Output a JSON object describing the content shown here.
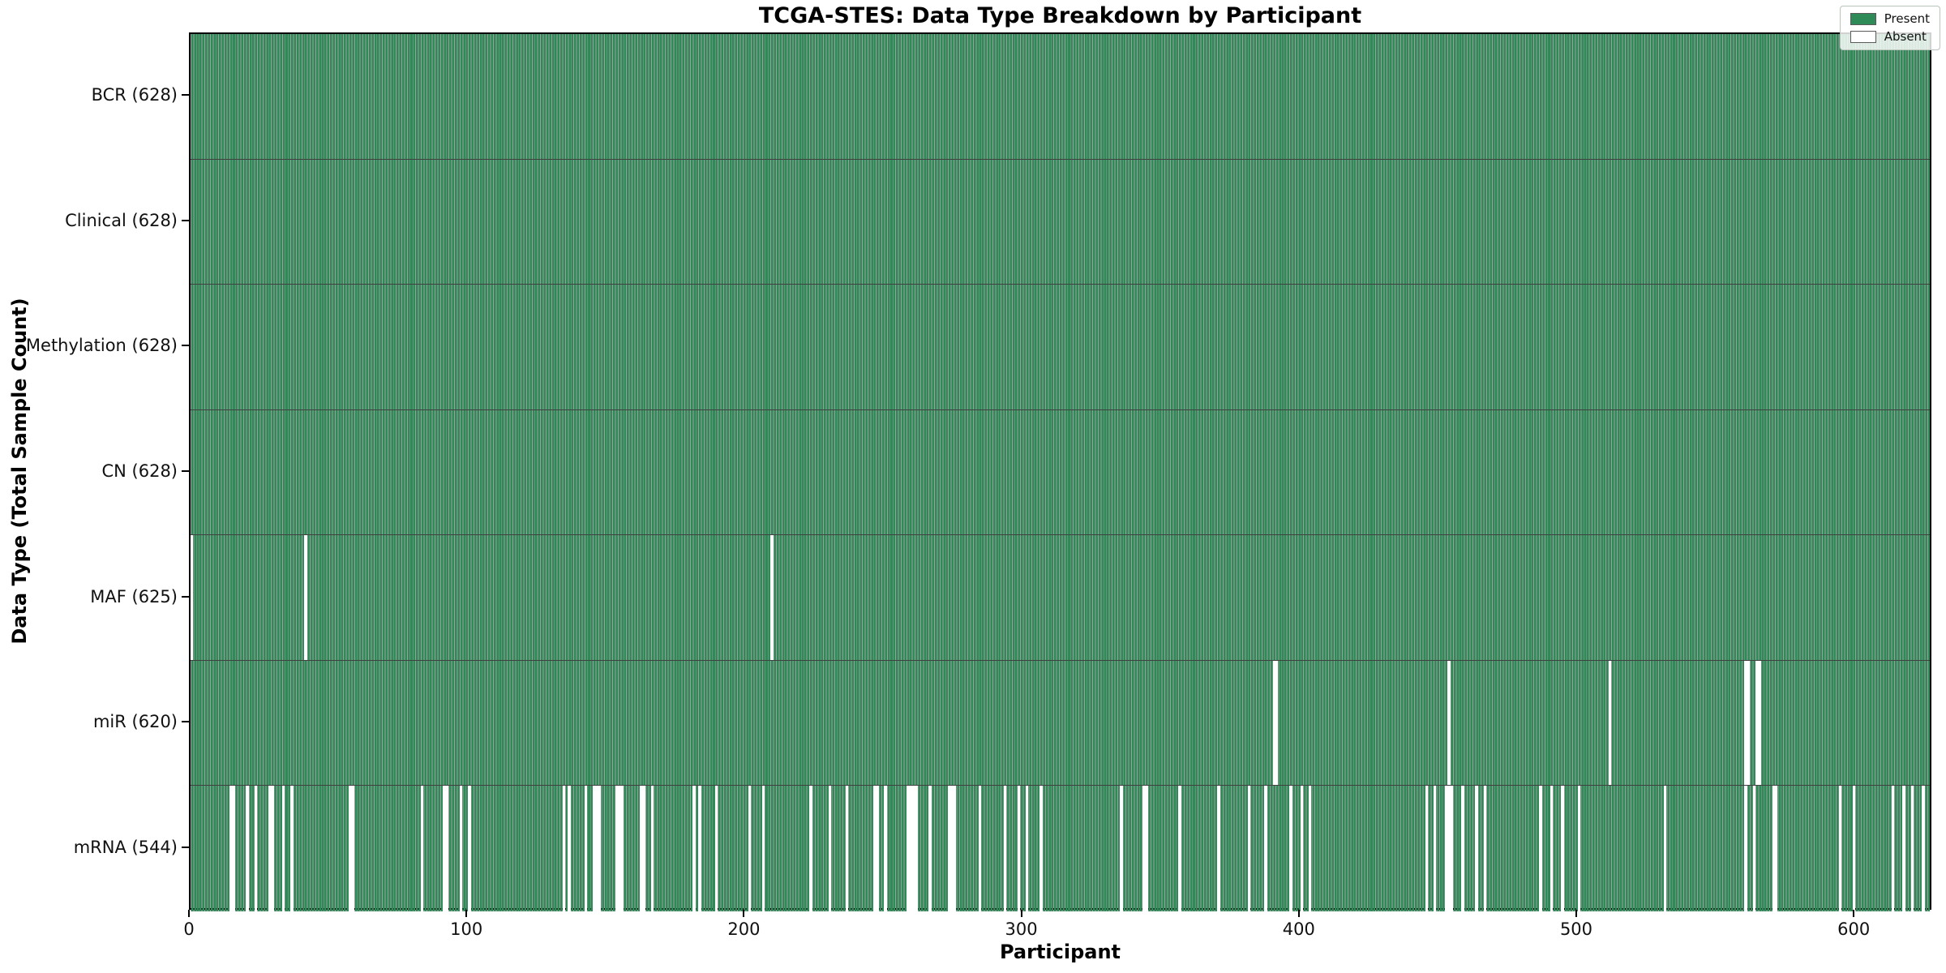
{
  "figure": {
    "title": "TCGA-STES: Data Type Breakdown by Participant",
    "x_label": "Participant",
    "y_label": "Data Type (Total Sample Count)"
  },
  "legend": {
    "items": [
      {
        "label": "Present",
        "color": "#2e8b57"
      },
      {
        "label": "Absent",
        "color": "#ffffff"
      }
    ]
  },
  "chart_data": {
    "type": "heatmap",
    "title": "TCGA-STES: Data Type Breakdown by Participant",
    "xlabel": "Participant",
    "ylabel": "Data Type (Total Sample Count)",
    "x_ticks": [
      0,
      100,
      200,
      300,
      400,
      500,
      600
    ],
    "xlim": [
      0,
      628
    ],
    "n_participants": 628,
    "legend_position": "upper right",
    "colors": {
      "present": "#2e8b57",
      "bar_edge": "rgba(0,0,0,0.38)",
      "absent": "#ffffff",
      "row_separator": "rgba(0,0,0,0.75)"
    },
    "rows": [
      {
        "label": "BCR",
        "total": 628,
        "display": "BCR (628)",
        "absent": []
      },
      {
        "label": "Clinical",
        "total": 628,
        "display": "Clinical (628)",
        "absent": []
      },
      {
        "label": "Methylation",
        "total": 628,
        "display": "Methylation (628)",
        "absent": []
      },
      {
        "label": "CN",
        "total": 628,
        "display": "CN (628)",
        "absent": []
      },
      {
        "label": "MAF",
        "total": 625,
        "display": "MAF (625)",
        "absent": [
          0,
          41,
          209
        ]
      },
      {
        "label": "miR",
        "total": 620,
        "display": "miR (620)",
        "absent": [
          390,
          391,
          453,
          511,
          560,
          561,
          564,
          565
        ]
      },
      {
        "label": "mRNA",
        "total": 544,
        "display": "mRNA (544)",
        "absent": [
          14,
          15,
          20,
          23,
          28,
          29,
          33,
          36,
          57,
          58,
          83,
          91,
          92,
          97,
          100,
          134,
          136,
          142,
          145,
          146,
          147,
          153,
          154,
          155,
          162,
          163,
          166,
          181,
          183,
          189,
          201,
          206,
          223,
          230,
          236,
          246,
          247,
          250,
          258,
          259,
          260,
          261,
          266,
          273,
          274,
          275,
          284,
          293,
          298,
          301,
          306,
          335,
          343,
          344,
          356,
          370,
          381,
          387,
          396,
          400,
          403,
          445,
          448,
          452,
          453,
          454,
          458,
          463,
          466,
          486,
          490,
          494,
          500,
          531,
          560,
          563,
          570,
          571,
          594,
          599,
          613,
          617,
          620,
          624
        ]
      }
    ]
  }
}
